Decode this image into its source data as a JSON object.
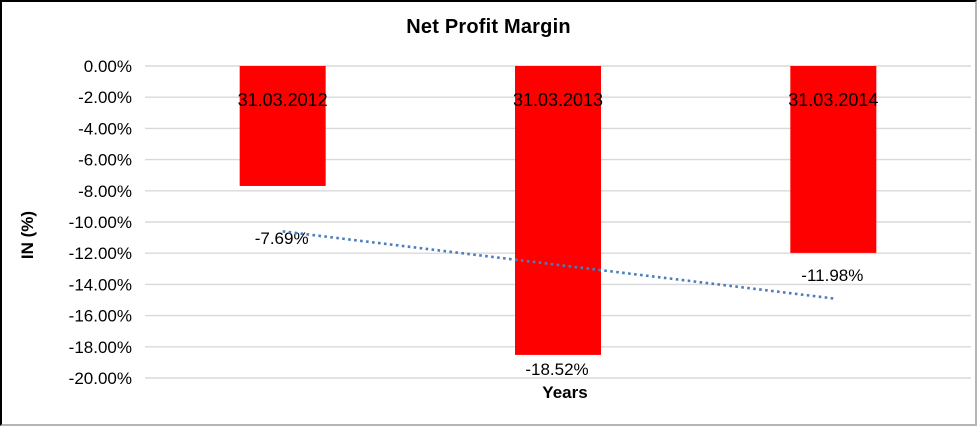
{
  "chart_data": {
    "type": "bar",
    "title": "Net Profit Margin",
    "xlabel": "Years",
    "ylabel": "IN (%)",
    "categories": [
      "31.03.2012",
      "31.03.2013",
      "31.03.2014"
    ],
    "values": [
      -7.69,
      -18.52,
      -11.98
    ],
    "data_labels": [
      "-7.69%",
      "-18.52%",
      "-11.98%"
    ],
    "bar_color": "#ff0000",
    "ylim": [
      0,
      -20
    ],
    "y_tick_step": -2,
    "y_tick_labels": [
      "0.00%",
      "-2.00%",
      "-4.00%",
      "-6.00%",
      "-8.00%",
      "-10.00%",
      "-12.00%",
      "-14.00%",
      "-16.00%",
      "-18.00%",
      "-20.00%"
    ],
    "grid": true,
    "gridline_color": "#d9d9d9",
    "legend": "none",
    "trendline": {
      "type": "linear",
      "style": "dotted",
      "color": "#4a7ebb",
      "start_value": -10.6,
      "end_value": -14.9
    }
  }
}
